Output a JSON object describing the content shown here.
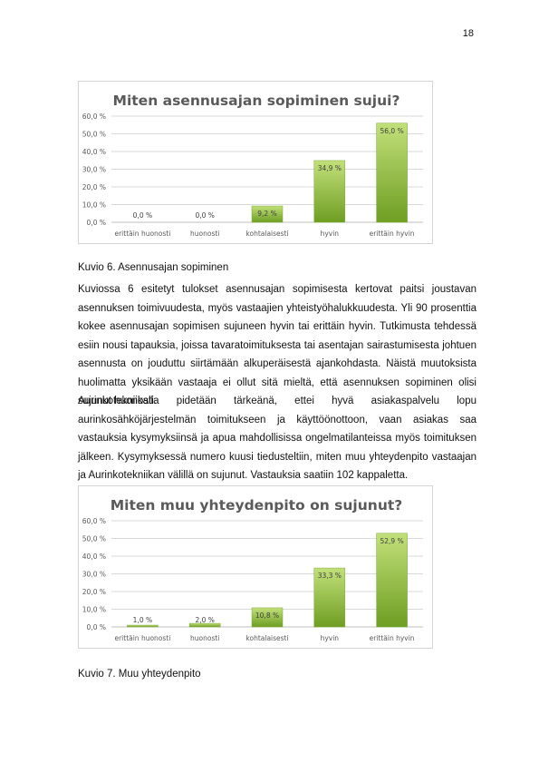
{
  "page_number": "18",
  "captions": {
    "figure6": "Kuvio 6. Asennusajan sopiminen",
    "figure7": "Kuvio 7. Muu yhteydenpito"
  },
  "paragraphs": {
    "p1": "Kuviossa 6 esitetyt tulokset asennusajan sopimisesta kertovat paitsi joustavan asennuksen toimivuudesta, myös vastaajien yhteistyöhalukkuudesta. Yli 90 prosenttia kokee asennusajan sopimisen sujuneen hyvin tai erittäin hyvin. Tutkimusta tehdessä esiin nousi tapauksia, joissa tavaratoimituksesta tai asentajan sairastumisesta johtuen asennusta on jouduttu siirtämään alkuperäisestä ajankohdasta. Näistä muutoksista huolimatta yksikään vastaaja ei ollut sitä mieltä, että asennuksen sopiminen olisi sujunut huonosti.",
    "p2": "Aurinkotekniikalla pidetään tärkeänä, ettei hyvä asiakaspalvelu lopu aurinkosähköjärjestelmän toimitukseen ja käyttöönottoon, vaan asiakas saa vastauksia kysymyksiinsä ja apua mahdollisissa ongelmatilanteissa myös toimituksen jälkeen. Kysymyksessä numero kuusi tiedusteltiin, miten muu yhteydenpito vastaajan ja Aurinkotekniikan välillä on sujunut. Vastauksia saatiin 102 kappaletta."
  },
  "colors": {
    "bar_light": "#c2e07a",
    "bar_dark": "#6e9e22",
    "title": "#5a5a5a",
    "axis": "#595959",
    "grid": "#d9d9d9"
  },
  "chart_data": [
    {
      "type": "bar",
      "title": "Miten asennusajan sopiminen sujui?",
      "categories": [
        "erittäin huonosti",
        "huonosti",
        "kohtalaisesti",
        "hyvin",
        "erittäin hyvin"
      ],
      "values": [
        0.0,
        0.0,
        9.2,
        34.9,
        56.0
      ],
      "value_labels": [
        "0,0 %",
        "0,0 %",
        "9,2 %",
        "34,9 %",
        "56,0 %"
      ],
      "y_ticks": [
        "0,0 %",
        "10,0 %",
        "20,0 %",
        "30,0 %",
        "40,0 %",
        "50,0 %",
        "60,0 %"
      ],
      "ylim": [
        0,
        60
      ],
      "grid": true,
      "legend": "none"
    },
    {
      "type": "bar",
      "title": "Miten muu yhteydenpito on sujunut?",
      "categories": [
        "erittäin huonosti",
        "huonosti",
        "kohtalaisesti",
        "hyvin",
        "erittäin hyvin"
      ],
      "values": [
        1.0,
        2.0,
        10.8,
        33.3,
        52.9
      ],
      "value_labels": [
        "1,0 %",
        "2,0 %",
        "10,8 %",
        "33,3 %",
        "52,9 %"
      ],
      "y_ticks": [
        "0,0 %",
        "10,0 %",
        "20,0 %",
        "30,0 %",
        "40,0 %",
        "50,0 %",
        "60,0 %"
      ],
      "ylim": [
        0,
        60
      ],
      "grid": true,
      "legend": "none"
    }
  ]
}
